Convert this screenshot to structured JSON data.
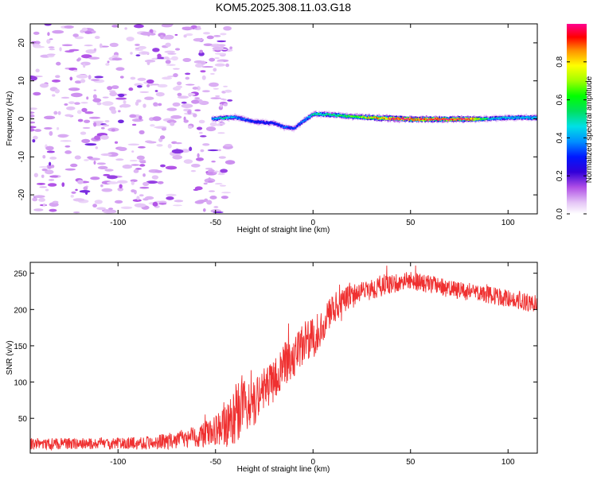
{
  "title": "KOM5.2025.308.11.03.G18",
  "chart_data": [
    {
      "type": "heatmap",
      "name": "spectrogram",
      "xlabel": "Height of straight line (km)",
      "ylabel": "Frequency (Hz)",
      "xlim": [
        -145,
        115
      ],
      "ylim": [
        -25,
        25
      ],
      "xticks": [
        -100,
        -50,
        0,
        50,
        100
      ],
      "yticks": [
        -20,
        -10,
        0,
        10,
        20
      ],
      "colorbar": {
        "label": "Normalized spectral amplitude",
        "range": [
          0,
          1
        ],
        "ticks": [
          0,
          0.2,
          0.4,
          0.6,
          0.8
        ],
        "tick_labels": [
          "0.0",
          "0.2",
          "0.4",
          "0.6",
          "0.8"
        ]
      },
      "ridge": {
        "description_points_x_km": [
          -52,
          -45,
          -40,
          -30,
          -20,
          -15,
          -10,
          -5,
          0,
          10,
          20,
          30,
          40,
          50,
          60,
          70,
          80,
          90,
          100,
          115
        ],
        "freq_hz": [
          0,
          0.3,
          0.4,
          -0.8,
          -1.2,
          -2.2,
          -2.5,
          -0.5,
          1.3,
          1,
          0.6,
          0.3,
          0.1,
          -0.1,
          -0.1,
          -0.1,
          -0.1,
          0,
          0.3,
          0.3
        ],
        "amplitude": [
          0.4,
          0.5,
          0.4,
          0.3,
          0.3,
          0.35,
          0.3,
          0.4,
          0.5,
          0.55,
          0.65,
          0.8,
          0.95,
          0.98,
          1.0,
          1.0,
          0.95,
          0.45,
          0.45,
          0.45
        ]
      },
      "noise_region_x_km": [
        -145,
        -50
      ],
      "noise_amplitude": [
        0,
        0.15
      ]
    },
    {
      "type": "line",
      "name": "snr",
      "color": "#ef3030",
      "xlabel": "Height of straight line (km)",
      "ylabel": "SNR (v/v)",
      "xlim": [
        -145,
        115
      ],
      "ylim": [
        2,
        265
      ],
      "xticks": [
        -100,
        -50,
        0,
        50,
        100
      ],
      "yticks": [
        50,
        100,
        150,
        200,
        250
      ],
      "trend_x": [
        -145,
        -100,
        -80,
        -70,
        -60,
        -50,
        -45,
        -40,
        -35,
        -30,
        -25,
        -20,
        -15,
        -10,
        -5,
        0,
        5,
        10,
        15,
        20,
        30,
        40,
        50,
        60,
        70,
        80,
        90,
        100,
        110,
        115
      ],
      "trend_y": [
        15,
        15,
        17,
        20,
        25,
        32,
        40,
        52,
        72,
        80,
        90,
        100,
        125,
        135,
        150,
        160,
        180,
        200,
        210,
        220,
        228,
        235,
        240,
        235,
        228,
        224,
        220,
        215,
        210,
        208
      ],
      "noise_amplitude": [
        8,
        8,
        10,
        12,
        15,
        22,
        30,
        40,
        45,
        40,
        30,
        28,
        30,
        30,
        30,
        28,
        25,
        22,
        18,
        16,
        14,
        14,
        13,
        13,
        12,
        12,
        12,
        12,
        12,
        12
      ]
    }
  ]
}
